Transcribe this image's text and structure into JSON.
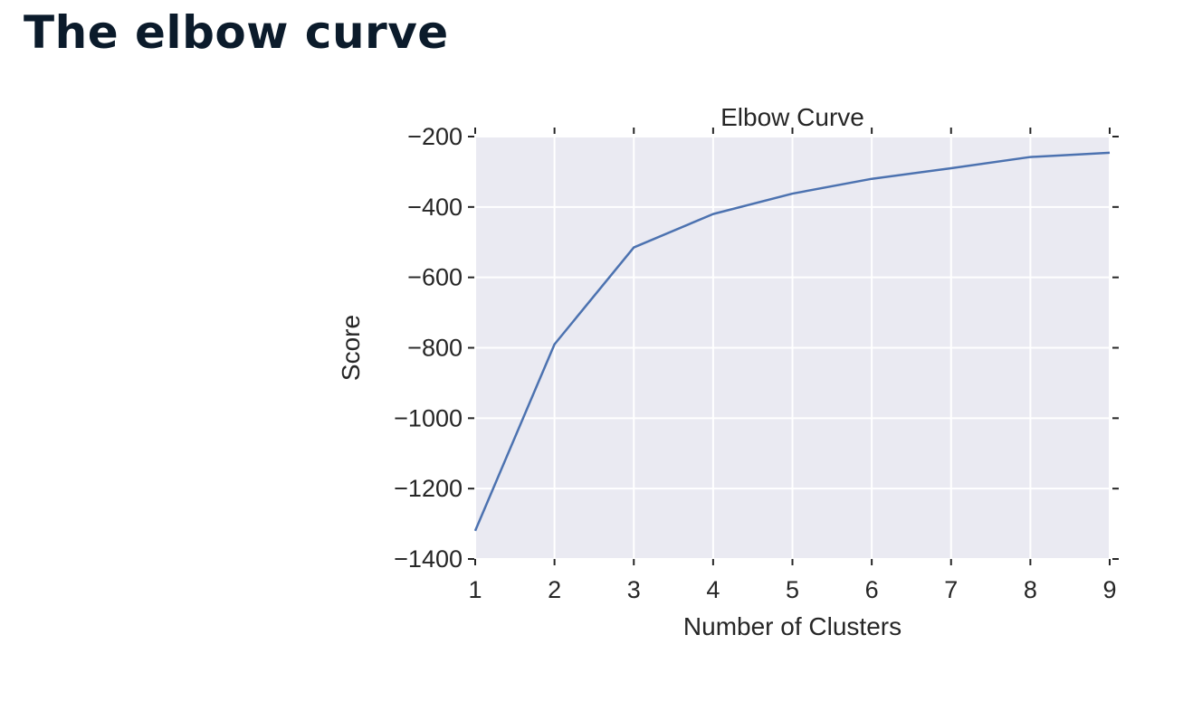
{
  "page": {
    "title": "The elbow curve"
  },
  "chart_data": {
    "type": "line",
    "title": "Elbow Curve",
    "xlabel": "Number of Clusters",
    "ylabel": "Score",
    "x": [
      1,
      2,
      3,
      4,
      5,
      6,
      7,
      8,
      9
    ],
    "series": [
      {
        "values": [
          -1320,
          -790,
          -515,
          -420,
          -362,
          -320,
          -290,
          -258,
          -246
        ],
        "color": "#4c72b0"
      }
    ],
    "xticks": [
      "1",
      "2",
      "3",
      "4",
      "5",
      "6",
      "7",
      "8",
      "9"
    ],
    "yticks": [
      "−200",
      "−400",
      "−600",
      "−800",
      "−1000",
      "−1200",
      "−1400"
    ],
    "ytick_values": [
      -200,
      -400,
      -600,
      -800,
      -1000,
      -1200,
      -1400
    ],
    "xlim": [
      1,
      9
    ],
    "ylim": [
      -1400,
      -200
    ],
    "grid": true,
    "background": "#eaeaf2",
    "grid_color": "#ffffff"
  }
}
